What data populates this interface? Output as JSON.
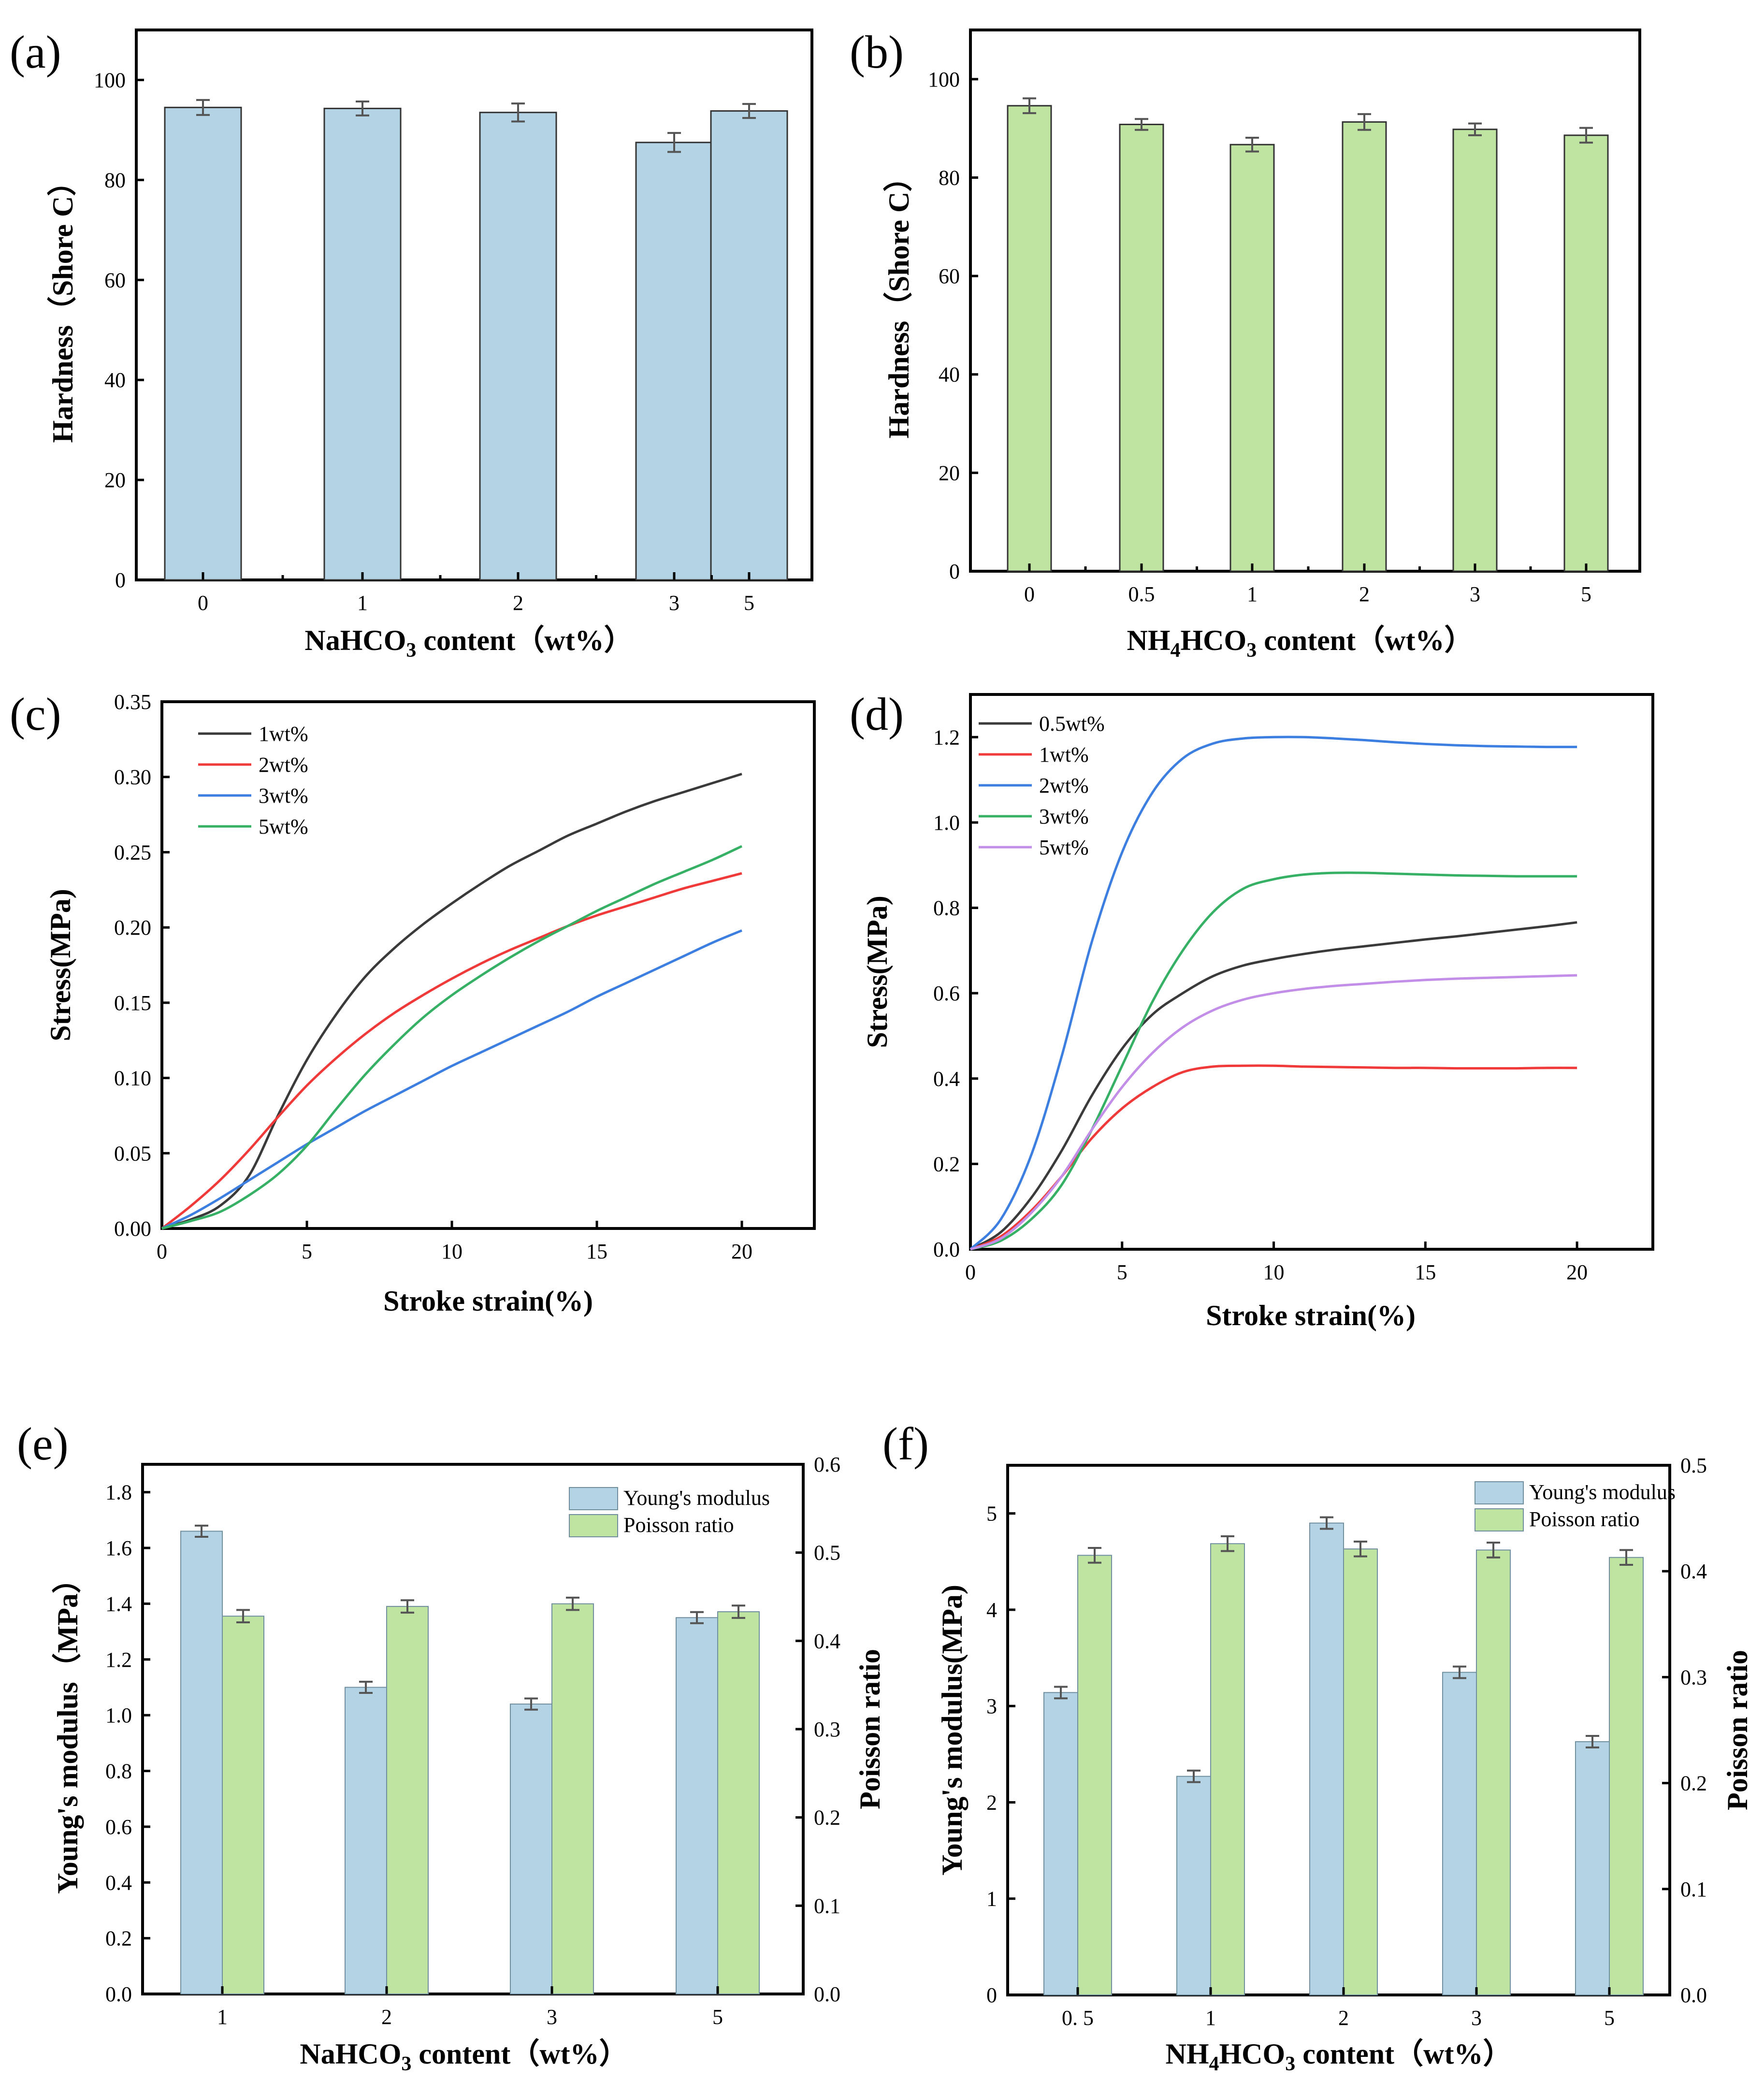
{
  "colors": {
    "bar_blue": "#b4d4e6",
    "bar_green": "#bfe3a0",
    "line_black": "#3a3a3a",
    "line_red": "#f03a3a",
    "line_blue": "#3d7fe0",
    "line_green": "#35b064",
    "line_purple": "#c28ee8"
  },
  "chart_data": [
    {
      "id": "a",
      "panel_label": "(a)",
      "type": "bar",
      "categories": [
        "0",
        "1",
        "2",
        "3",
        "5"
      ],
      "values": [
        94.5,
        94.3,
        93.5,
        87.5,
        93.8
      ],
      "errors": [
        1.5,
        1.4,
        1.8,
        1.9,
        1.4
      ],
      "xlabel_parts": [
        "NaHCO",
        "3",
        "",
        " content（wt%）"
      ],
      "ylabel": "Hardness（Shore C）",
      "ylim": [
        0,
        110
      ],
      "yticks": [
        "0",
        "20",
        "40",
        "60",
        "80",
        "100"
      ]
    },
    {
      "id": "b",
      "panel_label": "(b)",
      "type": "bar",
      "categories": [
        "0",
        "0.5",
        "1",
        "2",
        "3",
        "5"
      ],
      "values": [
        94.6,
        90.8,
        86.7,
        91.3,
        89.8,
        88.6
      ],
      "errors": [
        1.5,
        1.1,
        1.4,
        1.6,
        1.2,
        1.5
      ],
      "xlabel_parts": [
        "NH",
        "4",
        "HCO",
        "3",
        " content（wt%）"
      ],
      "ylabel": "Hardness（Shore C）",
      "ylim": [
        0,
        110
      ],
      "yticks": [
        "0",
        "20",
        "40",
        "60",
        "80",
        "100"
      ]
    },
    {
      "id": "c",
      "panel_label": "(c)",
      "type": "line",
      "xlabel": "Stroke strain(%)",
      "ylabel": "Stress(MPa)",
      "xlim": [
        0,
        22.5
      ],
      "ylim": [
        0,
        0.35
      ],
      "xticks": [
        "0",
        "5",
        "10",
        "15",
        "20"
      ],
      "yticks": [
        "0.00",
        "0.05",
        "0.10",
        "0.15",
        "0.20",
        "0.25",
        "0.30",
        "0.35"
      ],
      "legend": [
        "1wt%",
        "2wt%",
        "3wt%",
        "5wt%"
      ],
      "series": [
        {
          "name": "1wt%",
          "x": [
            0,
            1,
            2,
            3,
            4,
            5,
            6,
            7,
            8,
            9,
            10,
            11,
            12,
            13,
            14,
            15,
            16,
            17,
            18,
            19,
            20
          ],
          "y": [
            0,
            0.006,
            0.015,
            0.035,
            0.075,
            0.112,
            0.142,
            0.167,
            0.186,
            0.202,
            0.216,
            0.229,
            0.241,
            0.251,
            0.261,
            0.269,
            0.277,
            0.284,
            0.29,
            0.296,
            0.302
          ]
        },
        {
          "name": "2wt%",
          "x": [
            0,
            1,
            2,
            3,
            4,
            5,
            6,
            7,
            8,
            9,
            10,
            11,
            12,
            13,
            14,
            15,
            16,
            17,
            18,
            19,
            20
          ],
          "y": [
            0,
            0.015,
            0.032,
            0.052,
            0.074,
            0.095,
            0.113,
            0.129,
            0.143,
            0.155,
            0.166,
            0.176,
            0.185,
            0.193,
            0.201,
            0.208,
            0.214,
            0.22,
            0.226,
            0.231,
            0.236
          ]
        },
        {
          "name": "3wt%",
          "x": [
            0,
            1,
            2,
            3,
            4,
            5,
            6,
            7,
            8,
            9,
            10,
            11,
            12,
            13,
            14,
            15,
            16,
            17,
            18,
            19,
            20
          ],
          "y": [
            0,
            0.009,
            0.02,
            0.032,
            0.044,
            0.056,
            0.067,
            0.078,
            0.088,
            0.098,
            0.108,
            0.117,
            0.126,
            0.135,
            0.144,
            0.154,
            0.163,
            0.172,
            0.181,
            0.19,
            0.198
          ]
        },
        {
          "name": "5wt%",
          "x": [
            0,
            1,
            2,
            3,
            4,
            5,
            6,
            7,
            8,
            9,
            10,
            11,
            12,
            13,
            14,
            15,
            16,
            17,
            18,
            19,
            20
          ],
          "y": [
            0,
            0.005,
            0.011,
            0.022,
            0.036,
            0.055,
            0.079,
            0.102,
            0.122,
            0.14,
            0.155,
            0.168,
            0.18,
            0.191,
            0.201,
            0.211,
            0.22,
            0.229,
            0.237,
            0.245,
            0.254
          ]
        }
      ]
    },
    {
      "id": "d",
      "panel_label": "(d)",
      "type": "line",
      "xlabel": "Stroke strain(%)",
      "ylabel": "Stress(MPa)",
      "xlim": [
        0,
        22.5
      ],
      "ylim": [
        0,
        1.3
      ],
      "xticks": [
        "0",
        "5",
        "10",
        "15",
        "20"
      ],
      "yticks": [
        "0.0",
        "0.2",
        "0.4",
        "0.6",
        "0.8",
        "1.0",
        "1.2"
      ],
      "legend": [
        "0.5wt%",
        "1wt%",
        "2wt%",
        "3wt%",
        "5wt%"
      ],
      "series": [
        {
          "name": "0.5wt%",
          "x": [
            0,
            1,
            2,
            3,
            4,
            5,
            6,
            7,
            8,
            9,
            10,
            11,
            12,
            13,
            14,
            15,
            16,
            17,
            18,
            19,
            20
          ],
          "y": [
            0,
            0.04,
            0.12,
            0.23,
            0.36,
            0.47,
            0.55,
            0.6,
            0.64,
            0.665,
            0.68,
            0.692,
            0.702,
            0.71,
            0.718,
            0.726,
            0.733,
            0.741,
            0.749,
            0.757,
            0.766
          ]
        },
        {
          "name": "1wt%",
          "x": [
            0,
            1,
            2,
            3,
            4,
            5,
            6,
            7,
            8,
            9,
            10,
            11,
            12,
            13,
            14,
            15,
            16,
            17,
            18,
            19,
            20
          ],
          "y": [
            0,
            0.03,
            0.09,
            0.17,
            0.26,
            0.33,
            0.38,
            0.415,
            0.428,
            0.43,
            0.43,
            0.428,
            0.427,
            0.426,
            0.425,
            0.425,
            0.424,
            0.424,
            0.424,
            0.425,
            0.425
          ]
        },
        {
          "name": "2wt%",
          "x": [
            0,
            1,
            2,
            3,
            4,
            5,
            6,
            7,
            8,
            9,
            10,
            11,
            12,
            13,
            14,
            15,
            16,
            17,
            18,
            19,
            20
          ],
          "y": [
            0,
            0.07,
            0.22,
            0.45,
            0.72,
            0.93,
            1.07,
            1.15,
            1.185,
            1.197,
            1.2,
            1.2,
            1.197,
            1.193,
            1.188,
            1.184,
            1.181,
            1.179,
            1.178,
            1.177,
            1.177
          ]
        },
        {
          "name": "3wt%",
          "x": [
            0,
            1,
            2,
            3,
            4,
            5,
            6,
            7,
            8,
            9,
            10,
            11,
            12,
            13,
            14,
            15,
            16,
            17,
            18,
            19,
            20
          ],
          "y": [
            0,
            0.02,
            0.07,
            0.15,
            0.28,
            0.43,
            0.58,
            0.7,
            0.79,
            0.845,
            0.867,
            0.878,
            0.882,
            0.882,
            0.88,
            0.878,
            0.876,
            0.875,
            0.874,
            0.874,
            0.874
          ]
        },
        {
          "name": "5wt%",
          "x": [
            0,
            1,
            2,
            3,
            4,
            5,
            6,
            7,
            8,
            9,
            10,
            11,
            12,
            13,
            14,
            15,
            16,
            17,
            18,
            19,
            20
          ],
          "y": [
            0,
            0.025,
            0.085,
            0.17,
            0.28,
            0.38,
            0.46,
            0.52,
            0.56,
            0.585,
            0.6,
            0.61,
            0.617,
            0.622,
            0.627,
            0.631,
            0.634,
            0.636,
            0.638,
            0.64,
            0.642
          ]
        }
      ]
    },
    {
      "id": "e",
      "panel_label": "(e)",
      "type": "bar",
      "categories": [
        "1",
        "2",
        "3",
        "5"
      ],
      "xlabel_parts": [
        "NaHCO",
        "3",
        "",
        " content（wt%）"
      ],
      "ylabel": "Young's modulus（MPa）",
      "y2label": "Poisson ratio",
      "ylim": [
        0,
        1.9
      ],
      "y2lim": [
        0,
        0.6
      ],
      "yticks": [
        "0.0",
        "0.2",
        "0.4",
        "0.6",
        "0.8",
        "1.0",
        "1.2",
        "1.4",
        "1.6",
        "1.8"
      ],
      "y2ticks": [
        "0.0",
        "0.1",
        "0.2",
        "0.3",
        "0.4",
        "0.5",
        "0.6"
      ],
      "legend": [
        "Young's modulus",
        "Poisson ratio"
      ],
      "series": [
        {
          "name": "Young's modulus",
          "axis": "left",
          "values": [
            1.66,
            1.1,
            1.04,
            1.35
          ],
          "errors": [
            0.02,
            0.02,
            0.02,
            0.02
          ]
        },
        {
          "name": "Poisson ratio",
          "axis": "right",
          "values": [
            0.428,
            0.439,
            0.442,
            0.433
          ],
          "errors": [
            0.007,
            0.007,
            0.007,
            0.007
          ]
        }
      ]
    },
    {
      "id": "f",
      "panel_label": "(f)",
      "type": "bar",
      "categories": [
        "0. 5",
        "1",
        "2",
        "3",
        "5"
      ],
      "xlabel_parts": [
        "NH",
        "4",
        "HCO",
        "3",
        " content（wt%）"
      ],
      "ylabel": "Young's modulus(MPa)",
      "y2label": "Poisson ratio",
      "ylim": [
        0,
        5.5
      ],
      "y2lim": [
        0,
        0.5
      ],
      "yticks": [
        "0",
        "1",
        "2",
        "3",
        "4",
        "5"
      ],
      "y2ticks": [
        "0.0",
        "0.1",
        "0.2",
        "0.3",
        "0.4",
        "0.5"
      ],
      "legend": [
        "Young's modulus",
        "Poisson ratio"
      ],
      "series": [
        {
          "name": "Young's modulus",
          "axis": "left",
          "values": [
            3.14,
            2.27,
            4.9,
            3.35,
            2.63
          ],
          "errors": [
            0.06,
            0.06,
            0.06,
            0.06,
            0.06
          ]
        },
        {
          "name": "Poisson ratio",
          "axis": "right",
          "values": [
            0.415,
            0.426,
            0.421,
            0.42,
            0.413
          ],
          "errors": [
            0.007,
            0.007,
            0.007,
            0.007,
            0.007
          ]
        }
      ]
    }
  ]
}
